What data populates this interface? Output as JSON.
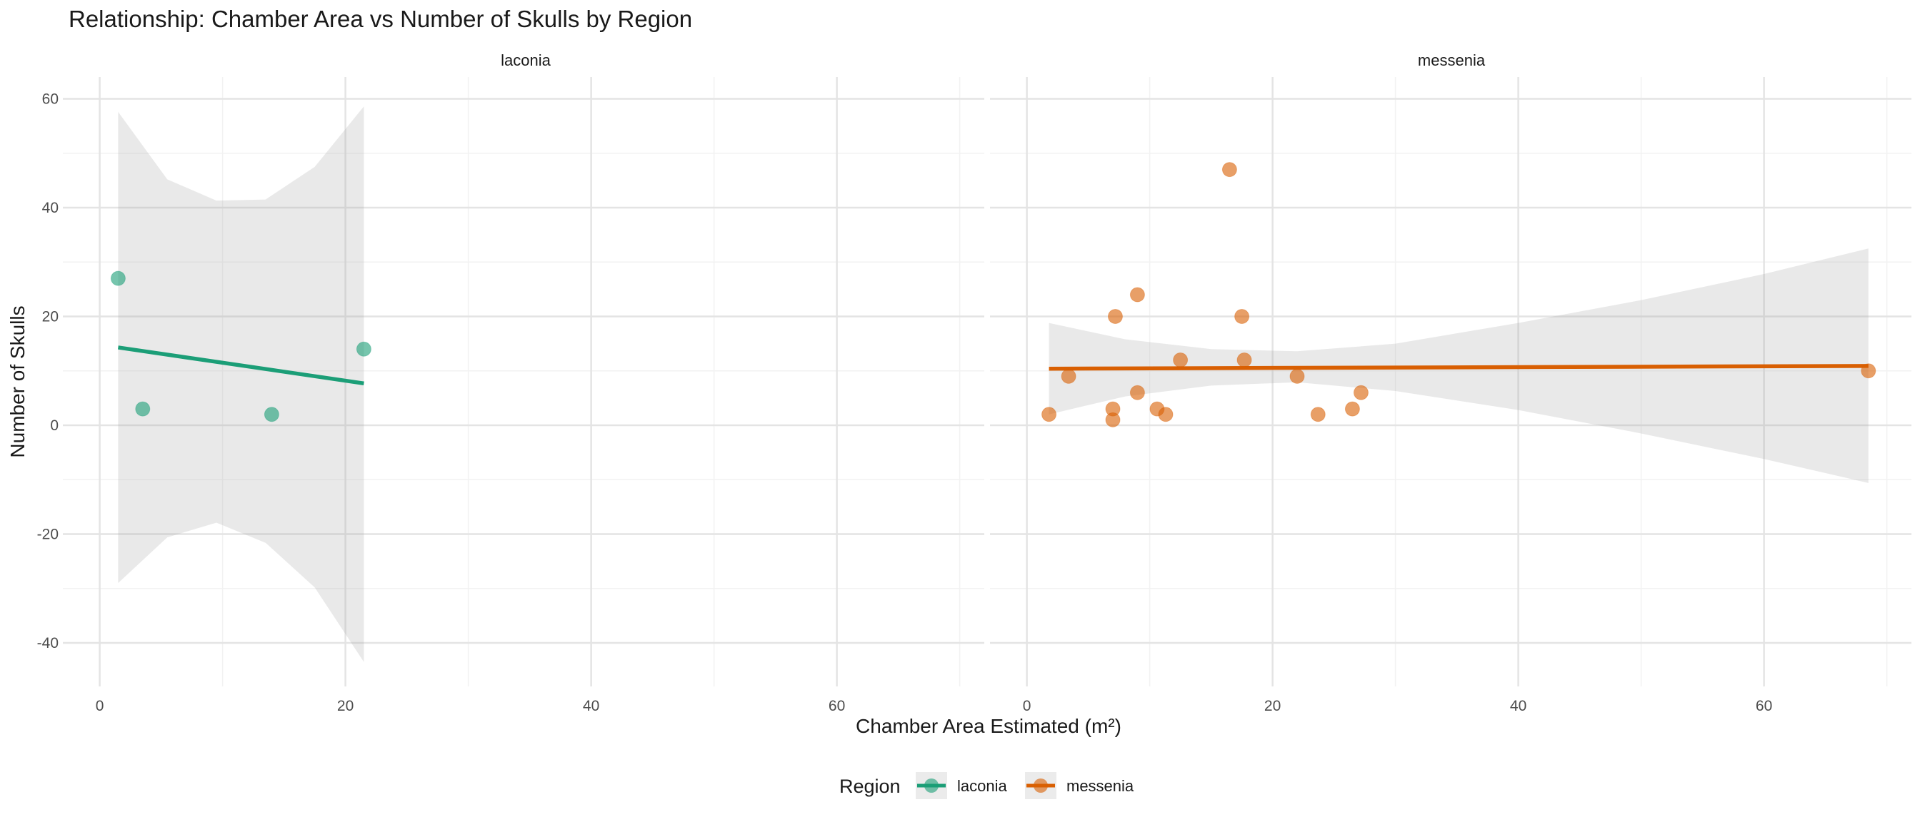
{
  "chart_data": {
    "type": "scatter",
    "title": "Relationship: Chamber Area vs Number of Skulls by Region",
    "xlabel": "Chamber Area Estimated (m²)",
    "ylabel": "Number of Skulls",
    "xlim": [
      -3,
      72
    ],
    "ylim": [
      -48,
      64
    ],
    "x_ticks": [
      0,
      20,
      40,
      60
    ],
    "y_ticks": [
      -40,
      -20,
      0,
      20,
      40,
      60
    ],
    "grid": true,
    "legend": {
      "title": "Region",
      "position": "bottom",
      "entries": [
        {
          "label": "laconia",
          "color": "#1b9e77"
        },
        {
          "label": "messenia",
          "color": "#d95f02"
        }
      ]
    },
    "facets": [
      {
        "name": "laconia",
        "color": "#1b9e77",
        "points": [
          {
            "x": 1.5,
            "y": 27
          },
          {
            "x": 3.5,
            "y": 3
          },
          {
            "x": 14,
            "y": 2
          },
          {
            "x": 21.5,
            "y": 14
          }
        ],
        "fit": {
          "x": [
            1.5,
            21.5
          ],
          "y": [
            14.3,
            7.7
          ]
        },
        "ci": {
          "x": [
            1.5,
            5.5,
            9.5,
            13.5,
            17.5,
            21.5
          ],
          "upper": [
            57.6,
            45.2,
            41.3,
            41.5,
            47.5,
            58.6
          ],
          "lower": [
            -29.0,
            -20.6,
            -17.9,
            -21.6,
            -29.8,
            -43.5
          ]
        }
      },
      {
        "name": "messenia",
        "color": "#d95f02",
        "points": [
          {
            "x": 16.5,
            "y": 47
          },
          {
            "x": 9,
            "y": 24
          },
          {
            "x": 7.2,
            "y": 20
          },
          {
            "x": 17.5,
            "y": 20
          },
          {
            "x": 12.5,
            "y": 12
          },
          {
            "x": 17.7,
            "y": 12
          },
          {
            "x": 3.4,
            "y": 9
          },
          {
            "x": 22,
            "y": 9
          },
          {
            "x": 68.5,
            "y": 10
          },
          {
            "x": 9,
            "y": 6
          },
          {
            "x": 27.2,
            "y": 6
          },
          {
            "x": 7,
            "y": 3
          },
          {
            "x": 10.6,
            "y": 3
          },
          {
            "x": 26.5,
            "y": 3
          },
          {
            "x": 1.8,
            "y": 2
          },
          {
            "x": 11.3,
            "y": 2
          },
          {
            "x": 23.7,
            "y": 2
          },
          {
            "x": 7,
            "y": 1
          }
        ],
        "fit": {
          "x": [
            1.8,
            68.5
          ],
          "y": [
            10.4,
            10.9
          ]
        },
        "ci": {
          "x": [
            1.8,
            8,
            15,
            22,
            30,
            40,
            50,
            60,
            68.5
          ],
          "upper": [
            18.8,
            15.8,
            14.0,
            13.6,
            15.0,
            18.8,
            23.0,
            27.8,
            32.5
          ],
          "lower": [
            2.0,
            5.3,
            7.3,
            7.9,
            6.3,
            2.8,
            -1.5,
            -6.2,
            -10.6
          ]
        }
      }
    ]
  }
}
